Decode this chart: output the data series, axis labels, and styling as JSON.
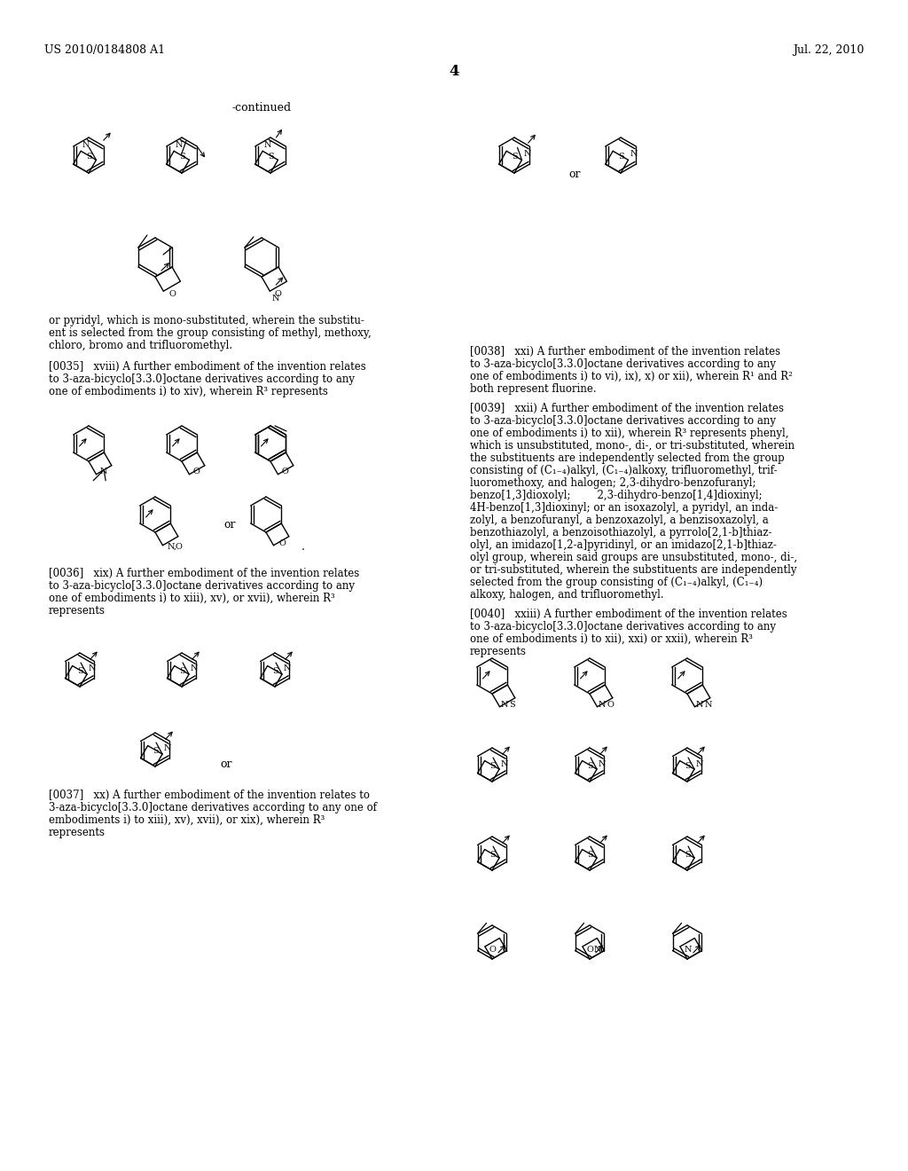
{
  "page_number": "4",
  "header_left": "US 2010/0184808 A1",
  "header_right": "Jul. 22, 2010",
  "background_color": "#ffffff",
  "text_color": "#000000",
  "continued_label": "-continued",
  "paragraph_0035": "[0035]   xviii) A further embodiment of the invention relates to 3-aza-bicyclo[3.3.0]octane derivatives according to any one of embodiments i) to xiv), wherein R³ represents",
  "paragraph_0035b": "or pyridyl, which is mono-substituted, wherein the substituent is selected from the group consisting of methyl, methoxy, chloro, bromo and trifluoromethyl.",
  "paragraph_0036": "[0036]   xix) A further embodiment of the invention relates to 3-aza-bicyclo[3.3.0]octane derivatives according to any one of embodiments i) to xiii), xv), or xvii), wherein R³ represents",
  "paragraph_0037": "[0037]   xx) A further embodiment of the invention relates to 3-aza-bicyclo[3.3.0]octane derivatives according to any one of embodiments i) to xiii), xv), xvii), or xix), wherein R³ represents",
  "paragraph_0038": "[0038]   xxi) A further embodiment of the invention relates to 3-aza-bicyclo[3.3.0]octane derivatives according to any one of embodiments i) to vi), ix), x) or xii), wherein R¹ and R² both represent fluorine.",
  "paragraph_0039": "[0039]   xxii) A further embodiment of the invention relates to 3-aza-bicyclo[3.3.0]octane derivatives according to any one of embodiments i) to xii), wherein R³ represents phenyl, which is unsubstituted, mono-, di-, or tri-substituted, wherein the substituents are independently selected from the group consisting of (C₁₋₄)alkyl, (C₁₋₄)alkoxy, trifluoromethyl, trifluoromethoxy, and halogen; 2,3-dihydro-benzofuranyl; benzo[1,3]dioxolyl;         2,3-dihydro-benzo[1,4]dioxinyl; 4H-benzo[1,3]dioxinyl; or an isoxazolyl, a pyridyl, an indazolyl, a benzofuranyl, a benzoxazolyl, a benzisoxazolyl, a benzothiazolyl, a benzoisothiazolyl, a pyrrolo[2,1-b]thiazolyl, an imidazo[1,2-a]pyridinyl, or an imidazo[2,1-b]thiazolyl group, wherein said groups are unsubstituted, mono-, di-, or tri-substituted, wherein the substituents are independently selected from the group consisting of (C₁₋₄)alkyl, (C₁₋₄)alkoxy, halogen, and trifluoromethyl.",
  "paragraph_0040": "[0040]   xxiii) A further embodiment of the invention relates to 3-aza-bicyclo[3.3.0]octane derivatives according to any one of embodiments i) to xii), xxi) or xxii), wherein R³ represents"
}
